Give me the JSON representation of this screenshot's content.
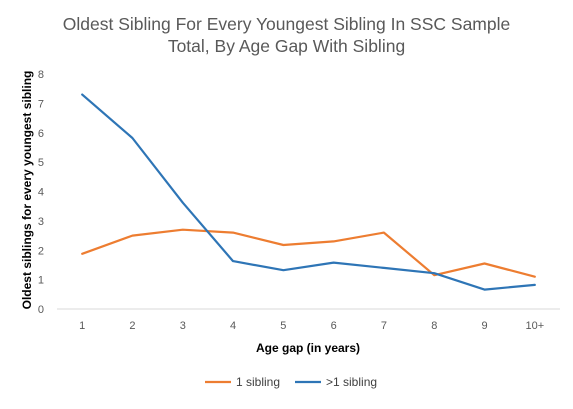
{
  "chart_data": {
    "type": "line",
    "title_lines": [
      "Oldest Sibling For Every Youngest Sibling In SSC Sample",
      "Total, By Age Gap With Sibling"
    ],
    "xlabel": "Age gap (in years)",
    "ylabel": "Oldest siblings for every youngest sibling",
    "categories": [
      "1",
      "2",
      "3",
      "4",
      "5",
      "6",
      "7",
      "8",
      "9",
      "10+"
    ],
    "yticks": [
      "0",
      "1",
      "2",
      "3",
      "4",
      "5",
      "6",
      "7",
      "8"
    ],
    "ylim": [
      0,
      8
    ],
    "grid": false,
    "legend_position": "bottom",
    "series": [
      {
        "name": "1 sibling",
        "color": "#ED7D31",
        "values": [
          1.88,
          2.5,
          2.7,
          2.6,
          2.18,
          2.3,
          2.6,
          1.15,
          1.55,
          1.1
        ]
      },
      {
        "name": ">1 sibling",
        "color": "#2E75B6",
        "values": [
          7.3,
          5.82,
          3.62,
          1.63,
          1.32,
          1.58,
          1.4,
          1.22,
          0.66,
          0.82
        ]
      }
    ]
  }
}
